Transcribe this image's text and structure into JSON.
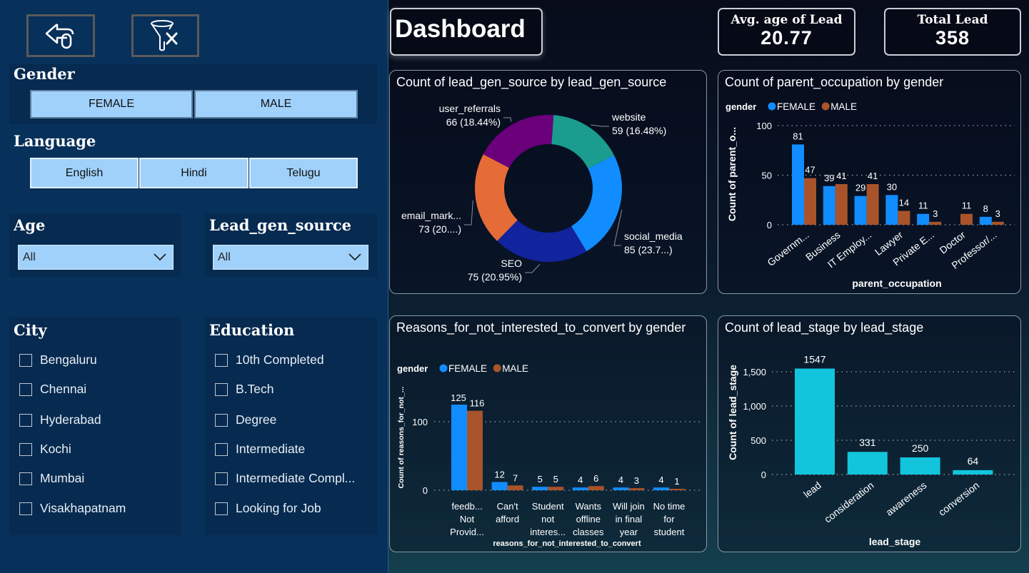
{
  "sidebar": {
    "back_button": {
      "icon": "back-arrow-icon"
    },
    "clear_filters_button": {
      "icon": "clear-filter-icon"
    },
    "gender": {
      "title": "Gender",
      "options": [
        "FEMALE",
        "MALE"
      ]
    },
    "language": {
      "title": "Language",
      "options": [
        "English",
        "Hindi",
        "Telugu"
      ]
    },
    "age": {
      "title": "Age",
      "selected": "All"
    },
    "lead_gen_source": {
      "title": "Lead_gen_source",
      "selected": "All"
    },
    "city": {
      "title": "City",
      "options": [
        "Bengaluru",
        "Chennai",
        "Hyderabad",
        "Kochi",
        "Mumbai",
        "Visakhapatnam"
      ]
    },
    "education": {
      "title": "Education",
      "options": [
        "10th Completed",
        "B.Tech",
        "Degree",
        "Intermediate",
        "Intermediate Compl...",
        "Looking for Job"
      ]
    }
  },
  "header": {
    "title": "Dashboard"
  },
  "kpis": [
    {
      "label": "Avg. age of Lead",
      "value": "20.77"
    },
    {
      "label": "Total Lead",
      "value": "358"
    }
  ],
  "colors": {
    "female": "#118dff",
    "male": "#a9532a",
    "lead_stage": "#12c5dc"
  },
  "chart_data": [
    {
      "type": "pie",
      "title": "Count of lead_gen_source by lead_gen_source",
      "donut": true,
      "slices": [
        {
          "name": "website",
          "value": 59,
          "label": "59 (16.48%)",
          "color": "#1a9c8f"
        },
        {
          "name": "social_media",
          "value": 85,
          "label": "85 (23.7...)",
          "color": "#118dff"
        },
        {
          "name": "SEO",
          "value": 75,
          "label": "75 (20.95%)",
          "color": "#12239e"
        },
        {
          "name": "email_mark...",
          "value": 73,
          "label": "73 (20....)",
          "color": "#e66c37"
        },
        {
          "name": "user_referrals",
          "value": 66,
          "label": "66 (18.44%)",
          "color": "#6b007b"
        }
      ]
    },
    {
      "type": "bar",
      "title": "Count of parent_occupation by gender",
      "legend_title": "gender",
      "legend": "top-left",
      "xlabel": "parent_occupation",
      "ylabel": "Count of parent_o...",
      "ylim": [
        0,
        100
      ],
      "yticks": [
        "0",
        "50",
        "100"
      ],
      "grid": true,
      "categories": [
        "Governm...",
        "Business",
        "IT Employ...",
        "Lawyer",
        "Private E...",
        "Doctor",
        "Professor/..."
      ],
      "series": [
        {
          "name": "FEMALE",
          "values": [
            81,
            39,
            29,
            30,
            11,
            null,
            8
          ]
        },
        {
          "name": "MALE",
          "values": [
            47,
            41,
            41,
            14,
            3,
            11,
            3
          ]
        }
      ]
    },
    {
      "type": "bar",
      "title": "Reasons_for_not_interested_to_convert by gender",
      "legend_title": "gender",
      "legend": "top-left",
      "xlabel": "reasons_for_not_interested_to_convert",
      "ylabel": "Count of reasons_for_not_...",
      "ylim": [
        0,
        150
      ],
      "yticks": [
        "0",
        "100"
      ],
      "grid": true,
      "categories": [
        [
          "feedb...",
          "Not",
          "Provid..."
        ],
        [
          "Can't",
          "afford"
        ],
        [
          "Student",
          "not",
          "interes..."
        ],
        [
          "Wants",
          "offline",
          "classes"
        ],
        [
          "Will join",
          "in final",
          "year"
        ],
        [
          "No time",
          "for",
          "student"
        ]
      ],
      "series": [
        {
          "name": "FEMALE",
          "values": [
            125,
            12,
            5,
            4,
            4,
            4
          ]
        },
        {
          "name": "MALE",
          "values": [
            116,
            7,
            5,
            6,
            3,
            1
          ]
        }
      ]
    },
    {
      "type": "bar",
      "title": "Count of lead_stage by lead_stage",
      "xlabel": "lead_stage",
      "ylabel": "Count of lead_stage",
      "ylim": [
        0,
        1500
      ],
      "yticks": [
        "0",
        "500",
        "1,000",
        "1,500"
      ],
      "grid": true,
      "categories": [
        "lead",
        "consideration",
        "awareness",
        "conversion"
      ],
      "values": [
        1547,
        331,
        250,
        64
      ]
    }
  ]
}
